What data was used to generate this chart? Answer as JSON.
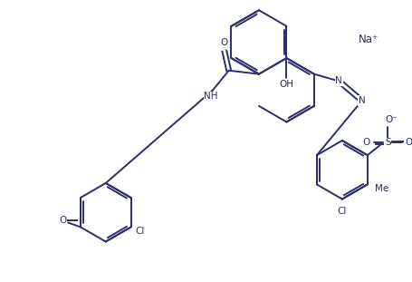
{
  "bg": "#ffffff",
  "lc": "#2d2d6e",
  "lw": 1.4,
  "fs": 7.5,
  "na_text": "Na⁺",
  "oh_text": "OH",
  "nh_text": "NH",
  "o_text": "O",
  "n_text": "N",
  "cl_text": "Cl",
  "me_text": "Me",
  "ome_text": "O",
  "so3_s": "S",
  "so3_o_top": "O⁻",
  "so3_o_left": "O",
  "so3_o_right": "O"
}
